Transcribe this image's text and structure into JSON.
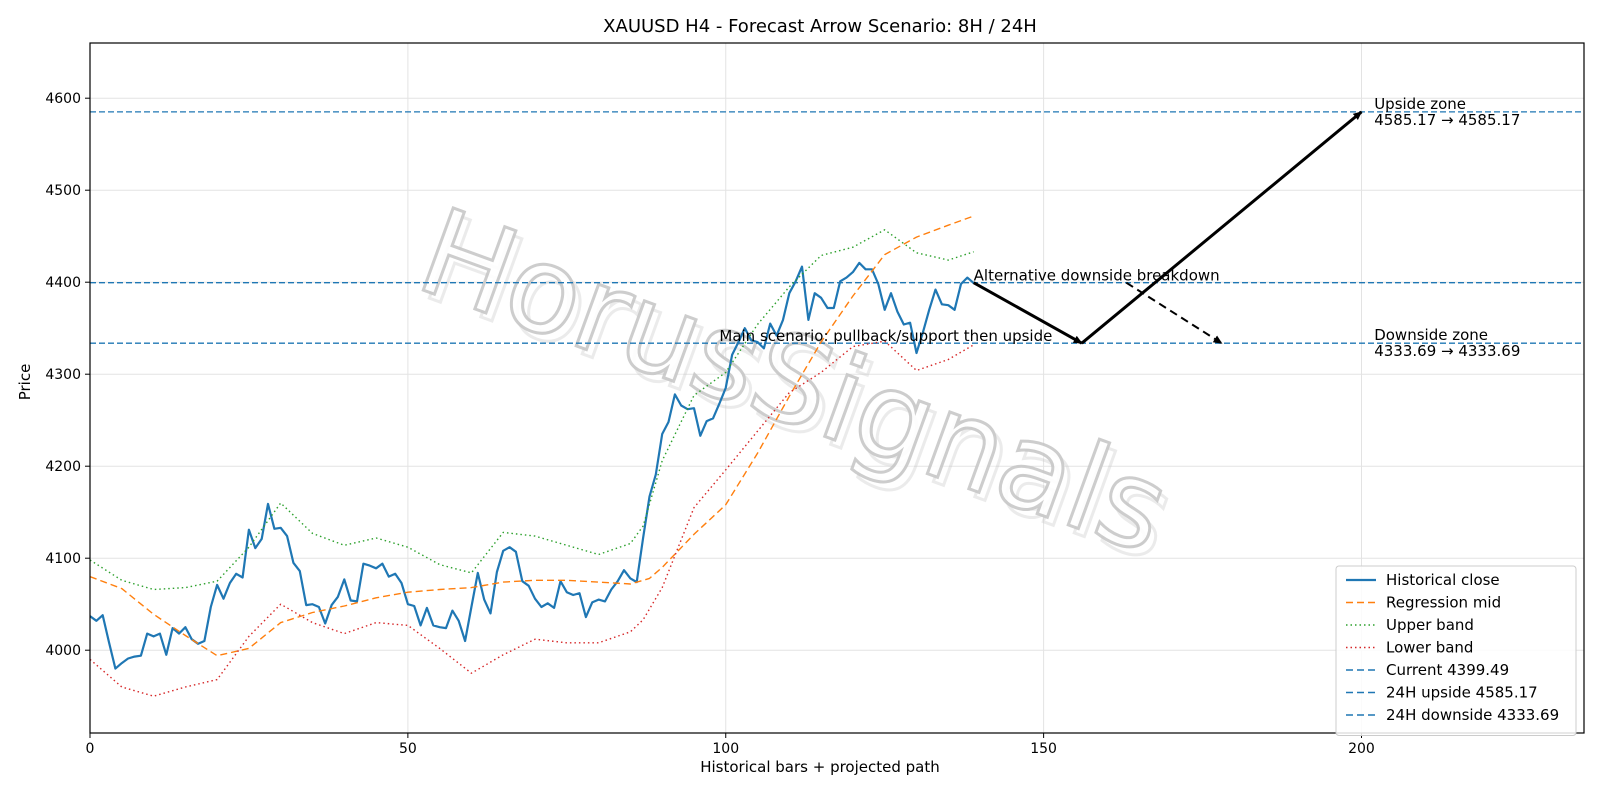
{
  "chart_data": {
    "type": "line",
    "title": "XAUUSD H4 - Forecast Arrow Scenario: 8H / 24H",
    "xlabel": "Historical bars + projected path",
    "ylabel": "Price",
    "xlim": [
      0,
      235
    ],
    "ylim": [
      3910,
      4660
    ],
    "x_ticks": [
      0,
      50,
      100,
      150,
      200
    ],
    "y_ticks": [
      4000,
      4100,
      4200,
      4300,
      4400,
      4500,
      4600
    ],
    "grid": true,
    "legend_position": "lower-right",
    "watermark": "HorusSignals",
    "series": [
      {
        "name": "Historical close",
        "style": "solid",
        "color": "#1f77b4",
        "x": [
          0,
          1,
          2,
          3,
          4,
          5,
          6,
          7,
          8,
          9,
          10,
          11,
          12,
          13,
          14,
          15,
          16,
          17,
          18,
          19,
          20,
          21,
          22,
          23,
          24,
          25,
          26,
          27,
          28,
          29,
          30,
          31,
          32,
          33,
          34,
          35,
          36,
          37,
          38,
          39,
          40,
          41,
          42,
          43,
          44,
          45,
          46,
          47,
          48,
          49,
          50,
          51,
          52,
          53,
          54,
          55,
          56,
          57,
          58,
          59,
          60,
          61,
          62,
          63,
          64,
          65,
          66,
          67,
          68,
          69,
          70,
          71,
          72,
          73,
          74,
          75,
          76,
          77,
          78,
          79,
          80,
          81,
          82,
          83,
          84,
          85,
          86,
          87,
          88,
          89,
          90,
          91,
          92,
          93,
          94,
          95,
          96,
          97,
          98,
          99,
          100,
          101,
          102,
          103,
          104,
          105,
          106,
          107,
          108,
          109,
          110,
          111,
          112,
          113,
          114,
          115,
          116,
          117,
          118,
          119,
          120,
          121,
          122,
          123,
          124,
          125,
          126,
          127,
          128,
          129,
          130,
          131,
          132,
          133,
          134,
          135,
          136,
          137,
          138,
          139
        ],
        "values": [
          4037,
          4032,
          4038,
          4008,
          3980,
          3986,
          3991,
          3993,
          3994,
          4018,
          4015,
          4018,
          3995,
          4024,
          4018,
          4025,
          4012,
          4007,
          4010,
          4047,
          4071,
          4056,
          4073,
          4083,
          4079,
          4131,
          4111,
          4121,
          4159,
          4132,
          4133,
          4124,
          4095,
          4086,
          4049,
          4050,
          4047,
          4029,
          4049,
          4058,
          4077,
          4054,
          4053,
          4094,
          4092,
          4089,
          4094,
          4080,
          4083,
          4073,
          4050,
          4048,
          4027,
          4046,
          4027,
          4025,
          4024,
          4043,
          4032,
          4010,
          4047,
          4084,
          4055,
          4040,
          4085,
          4108,
          4112,
          4107,
          4075,
          4070,
          4056,
          4047,
          4051,
          4046,
          4075,
          4063,
          4060,
          4062,
          4036,
          4052,
          4055,
          4053,
          4066,
          4075,
          4087,
          4078,
          4074,
          4122,
          4167,
          4191,
          4235,
          4248,
          4278,
          4266,
          4262,
          4263,
          4233,
          4249,
          4252,
          4268,
          4285,
          4321,
          4335,
          4350,
          4337,
          4335,
          4328,
          4355,
          4342,
          4359,
          4388,
          4401,
          4417,
          4359,
          4388,
          4383,
          4372,
          4372,
          4401,
          4405,
          4411,
          4421,
          4414,
          4414,
          4398,
          4370,
          4388,
          4368,
          4354,
          4356,
          4323,
          4345,
          4370,
          4392,
          4376,
          4375,
          4370,
          4398,
          4405,
          4399
        ]
      },
      {
        "name": "Regression mid",
        "style": "dashed",
        "color": "#ff7f0e",
        "x": [
          0,
          5,
          10,
          15,
          20,
          25,
          30,
          35,
          40,
          45,
          50,
          55,
          60,
          65,
          70,
          75,
          80,
          85,
          88,
          90,
          95,
          100,
          105,
          110,
          115,
          120,
          125,
          130,
          135,
          139
        ],
        "values": [
          4080,
          4067,
          4039,
          4016,
          3994,
          4002,
          4030,
          4041,
          4048,
          4057,
          4063,
          4066,
          4068,
          4074,
          4076,
          4076,
          4074,
          4072,
          4078,
          4090,
          4126,
          4158,
          4214,
          4276,
          4335,
          4385,
          4430,
          4449,
          4462,
          4472
        ]
      },
      {
        "name": "Upper band",
        "style": "dotted",
        "color": "#2ca02c",
        "x": [
          0,
          5,
          10,
          15,
          20,
          25,
          30,
          35,
          40,
          45,
          50,
          55,
          60,
          65,
          70,
          75,
          80,
          85,
          87,
          90,
          95,
          100,
          105,
          110,
          115,
          120,
          125,
          130,
          135,
          139
        ],
        "values": [
          4098,
          4076,
          4066,
          4068,
          4075,
          4112,
          4160,
          4127,
          4114,
          4122,
          4112,
          4093,
          4084,
          4128,
          4124,
          4114,
          4104,
          4116,
          4135,
          4206,
          4277,
          4302,
          4354,
          4395,
          4429,
          4438,
          4457,
          4432,
          4424,
          4433
        ]
      },
      {
        "name": "Lower band",
        "style": "dotted",
        "color": "#d62728",
        "x": [
          0,
          5,
          10,
          15,
          20,
          25,
          30,
          35,
          40,
          45,
          50,
          55,
          60,
          65,
          70,
          75,
          80,
          85,
          87,
          90,
          95,
          100,
          105,
          110,
          115,
          120,
          125,
          130,
          135,
          139
        ],
        "values": [
          3990,
          3960,
          3950,
          3960,
          3968,
          4015,
          4050,
          4030,
          4018,
          4030,
          4027,
          4002,
          3975,
          3995,
          4012,
          4008,
          4008,
          4020,
          4033,
          4068,
          4155,
          4196,
          4238,
          4280,
          4302,
          4330,
          4336,
          4304,
          4316,
          4332
        ]
      }
    ],
    "hlines": [
      {
        "name": "Current 4399.49",
        "y": 4399.49,
        "color": "#1f77b4",
        "style": "dashed"
      },
      {
        "name": "24H upside 4585.17",
        "y": 4585.17,
        "color": "#1f77b4",
        "style": "dashed"
      },
      {
        "name": "24H downside 4333.69",
        "y": 4333.69,
        "color": "#1f77b4",
        "style": "dashed"
      }
    ],
    "arrows": [
      {
        "from": [
          139,
          4399.49
        ],
        "to": [
          156,
          4333.69
        ],
        "style": "solid"
      },
      {
        "from": [
          156,
          4333.69
        ],
        "to": [
          200,
          4585.17
        ],
        "style": "solid"
      },
      {
        "from": [
          163,
          4399.49
        ],
        "to": [
          178,
          4333.69
        ],
        "style": "dashed"
      }
    ],
    "annotations": [
      {
        "text": "Main scenario: pullback/support then upside",
        "x": 99,
        "y": 4333.69
      },
      {
        "text": "Alternative downside breakdown",
        "x": 139,
        "y": 4399.49
      },
      {
        "text": "Upside zone",
        "x": 202,
        "y": 4585.17,
        "line2": "4585.17 → 4585.17"
      },
      {
        "text": "Downside zone",
        "x": 202,
        "y": 4333.69,
        "line2": "4333.69 → 4333.69"
      }
    ]
  }
}
